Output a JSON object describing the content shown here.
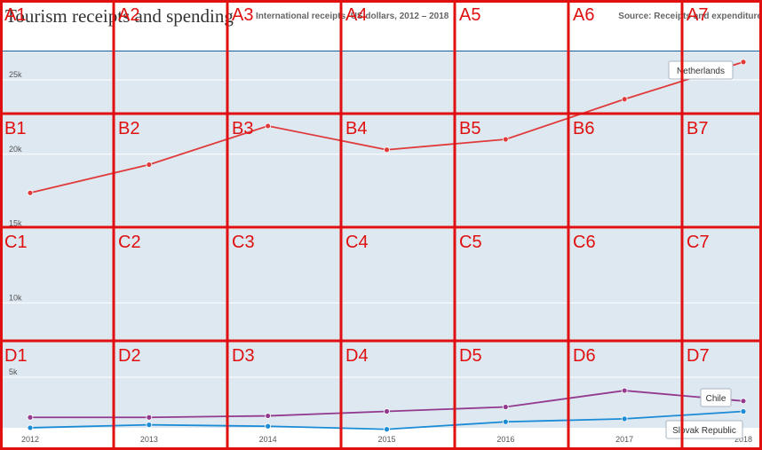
{
  "header": {
    "title": "Tourism receipts and spending",
    "subtitle": "International receipts, US dollars, 2012 – 2018",
    "source": "Source: Receipts and expenditure"
  },
  "chart_data": {
    "type": "line",
    "title": "Tourism receipts and spending",
    "subtitle": "International receipts, US dollars, 2012 – 2018",
    "x": [
      2012,
      2013,
      2014,
      2015,
      2016,
      2017,
      2018
    ],
    "x_tick_labels": [
      "2012",
      "2013",
      "2014",
      "2015",
      "2016",
      "2017",
      "2018"
    ],
    "ylim": [
      0,
      28000
    ],
    "y_ticks": [
      5000,
      10000,
      15000,
      20000,
      25000
    ],
    "y_tick_labels": [
      "5k",
      "10k",
      "15k",
      "20k",
      "25k"
    ],
    "grid": true,
    "series": [
      {
        "name": "Netherlands",
        "color": "#e03a3a",
        "values": [
          17400,
          19300,
          21900,
          20300,
          21000,
          23700,
          26200
        ]
      },
      {
        "name": "Chile",
        "color": "#933a8f",
        "values": [
          2300,
          2300,
          2400,
          2700,
          3000,
          4100,
          3400
        ]
      },
      {
        "name": "Slovak Republic",
        "color": "#1a8bd6",
        "values": [
          1600,
          1800,
          1700,
          1500,
          2000,
          2200,
          2700
        ]
      }
    ]
  },
  "overlay": {
    "rows": [
      "A",
      "B",
      "C",
      "D"
    ],
    "cols": [
      "1",
      "2",
      "3",
      "4",
      "5",
      "6",
      "7"
    ],
    "color": "#e01010"
  }
}
